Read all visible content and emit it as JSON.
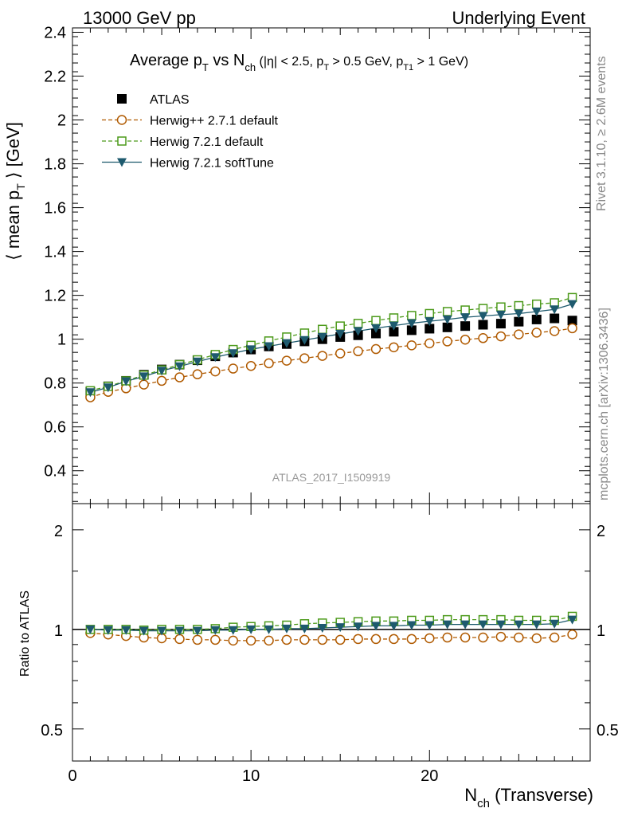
{
  "header": {
    "energy": "13000 GeV pp",
    "process": "Underlying Event"
  },
  "side": {
    "rivet": "Rivet 3.1.10, ≥ 2.6M events",
    "mcplots": "mcplots.cern.ch [arXiv:1306.3436]"
  },
  "chart_data": [
    {
      "type": "scatter",
      "panel": "main",
      "title": "Average pT vs Nch (|η| < 2.5, pT > 0.5 GeV, pT1 > 1 GeV)",
      "title_parts": {
        "a": "Average p",
        "a_sub": "T",
        "b": " vs N",
        "b_sub": "ch",
        "c": " (|η| < 2.5, p",
        "c_sub": "T",
        "d": " > 0.5 GeV, p",
        "d_sub": "T1",
        "e": " > 1 GeV)"
      },
      "ylabel": "⟨ mean pT ⟩ [GeV]",
      "ylabel_parts": {
        "a": "⟨ mean p",
        "sub": "T",
        "b": " ⟩ [GeV]"
      },
      "watermark": "ATLAS_2017_I1509919",
      "ylim": [
        0.25,
        2.42
      ],
      "xlim": [
        0,
        29
      ],
      "yticks": [
        0.4,
        0.6,
        0.8,
        1,
        1.2,
        1.4,
        1.6,
        1.8,
        2,
        2.2,
        2.4
      ],
      "ytick_labels": [
        "0.4",
        "0.6",
        "0.8",
        "1",
        "1.2",
        "1.4",
        "1.6",
        "1.8",
        "2",
        "2.2",
        "2.4"
      ],
      "legend_position": "top-left",
      "x": [
        1,
        2,
        3,
        4,
        5,
        6,
        7,
        8,
        9,
        10,
        11,
        12,
        13,
        14,
        15,
        16,
        17,
        18,
        19,
        20,
        21,
        22,
        23,
        24,
        25,
        26,
        27,
        28
      ],
      "series": [
        {
          "name": "ATLAS",
          "color": "#000000",
          "marker": "square-filled",
          "line": "none",
          "values": [
            0.76,
            0.785,
            0.81,
            0.838,
            0.862,
            0.884,
            0.904,
            0.922,
            0.939,
            0.953,
            0.967,
            0.978,
            0.99,
            1.0,
            1.01,
            1.018,
            1.026,
            1.034,
            1.041,
            1.048,
            1.054,
            1.06,
            1.066,
            1.071,
            1.08,
            1.09,
            1.095,
            1.085
          ]
        },
        {
          "name": "Herwig++ 2.7.1 default",
          "color": "#B05A00",
          "marker": "circle-open",
          "line": "dashed",
          "values": [
            0.735,
            0.76,
            0.776,
            0.793,
            0.81,
            0.826,
            0.84,
            0.853,
            0.866,
            0.878,
            0.89,
            0.902,
            0.913,
            0.924,
            0.935,
            0.945,
            0.955,
            0.963,
            0.972,
            0.981,
            0.99,
            0.998,
            1.005,
            1.013,
            1.022,
            1.03,
            1.037,
            1.05
          ]
        },
        {
          "name": "Herwig 7.2.1 default",
          "color": "#4C9A1A",
          "marker": "square-open",
          "line": "dashed",
          "values": [
            0.765,
            0.785,
            0.81,
            0.836,
            0.86,
            0.884,
            0.906,
            0.93,
            0.953,
            0.972,
            0.992,
            1.01,
            1.028,
            1.045,
            1.06,
            1.072,
            1.085,
            1.097,
            1.108,
            1.117,
            1.126,
            1.133,
            1.14,
            1.147,
            1.153,
            1.16,
            1.166,
            1.19
          ]
        },
        {
          "name": "Herwig 7.2.1 softTune",
          "color": "#1E5A6E",
          "marker": "triangle-down-filled",
          "line": "solid",
          "values": [
            0.758,
            0.78,
            0.808,
            0.83,
            0.856,
            0.876,
            0.898,
            0.918,
            0.936,
            0.954,
            0.968,
            0.982,
            0.996,
            1.01,
            1.024,
            1.037,
            1.05,
            1.062,
            1.073,
            1.082,
            1.09,
            1.1,
            1.106,
            1.112,
            1.117,
            1.126,
            1.136,
            1.16
          ]
        }
      ]
    },
    {
      "type": "scatter",
      "panel": "ratio",
      "ylabel": "Ratio to ATLAS",
      "xlabel": "Nch (Transverse)",
      "xlabel_parts": {
        "a": "N",
        "sub": "ch",
        "b": " (Transverse)"
      },
      "yscale": "log",
      "ylim": [
        0.4,
        2.4
      ],
      "xlim": [
        0,
        29
      ],
      "yticks": [
        0.5,
        1,
        2
      ],
      "ytick_labels": [
        "0.5",
        "1",
        "2"
      ],
      "xticks": [
        0,
        10,
        20
      ],
      "xtick_labels": [
        "0",
        "10",
        "20"
      ],
      "x": [
        1,
        2,
        3,
        4,
        5,
        6,
        7,
        8,
        9,
        10,
        11,
        12,
        13,
        14,
        15,
        16,
        17,
        18,
        19,
        20,
        21,
        22,
        23,
        24,
        25,
        26,
        27,
        28
      ],
      "series": [
        {
          "name": "Herwig++ 2.7.1 default",
          "color": "#B05A00",
          "marker": "circle-open",
          "line": "dashed",
          "values": [
            0.975,
            0.965,
            0.955,
            0.945,
            0.94,
            0.935,
            0.93,
            0.93,
            0.925,
            0.925,
            0.925,
            0.93,
            0.93,
            0.93,
            0.93,
            0.935,
            0.935,
            0.935,
            0.935,
            0.94,
            0.945,
            0.945,
            0.945,
            0.95,
            0.945,
            0.94,
            0.945,
            0.965
          ]
        },
        {
          "name": "Herwig 7.2.1 default",
          "color": "#4C9A1A",
          "marker": "square-open",
          "line": "dashed",
          "values": [
            1.0,
            1.0,
            1.0,
            0.995,
            1.0,
            1.0,
            1.0,
            1.005,
            1.015,
            1.02,
            1.025,
            1.03,
            1.04,
            1.045,
            1.05,
            1.055,
            1.06,
            1.06,
            1.065,
            1.065,
            1.07,
            1.07,
            1.07,
            1.07,
            1.065,
            1.065,
            1.065,
            1.095
          ]
        },
        {
          "name": "Herwig 7.2.1 softTune",
          "color": "#1E5A6E",
          "marker": "triangle-down-filled",
          "line": "solid",
          "values": [
            1.0,
            0.995,
            0.995,
            0.99,
            0.99,
            0.99,
            0.99,
            0.995,
            0.995,
            1.0,
            1.0,
            1.005,
            1.005,
            1.01,
            1.015,
            1.02,
            1.025,
            1.025,
            1.03,
            1.03,
            1.035,
            1.035,
            1.035,
            1.035,
            1.035,
            1.035,
            1.04,
            1.07
          ]
        }
      ]
    }
  ]
}
